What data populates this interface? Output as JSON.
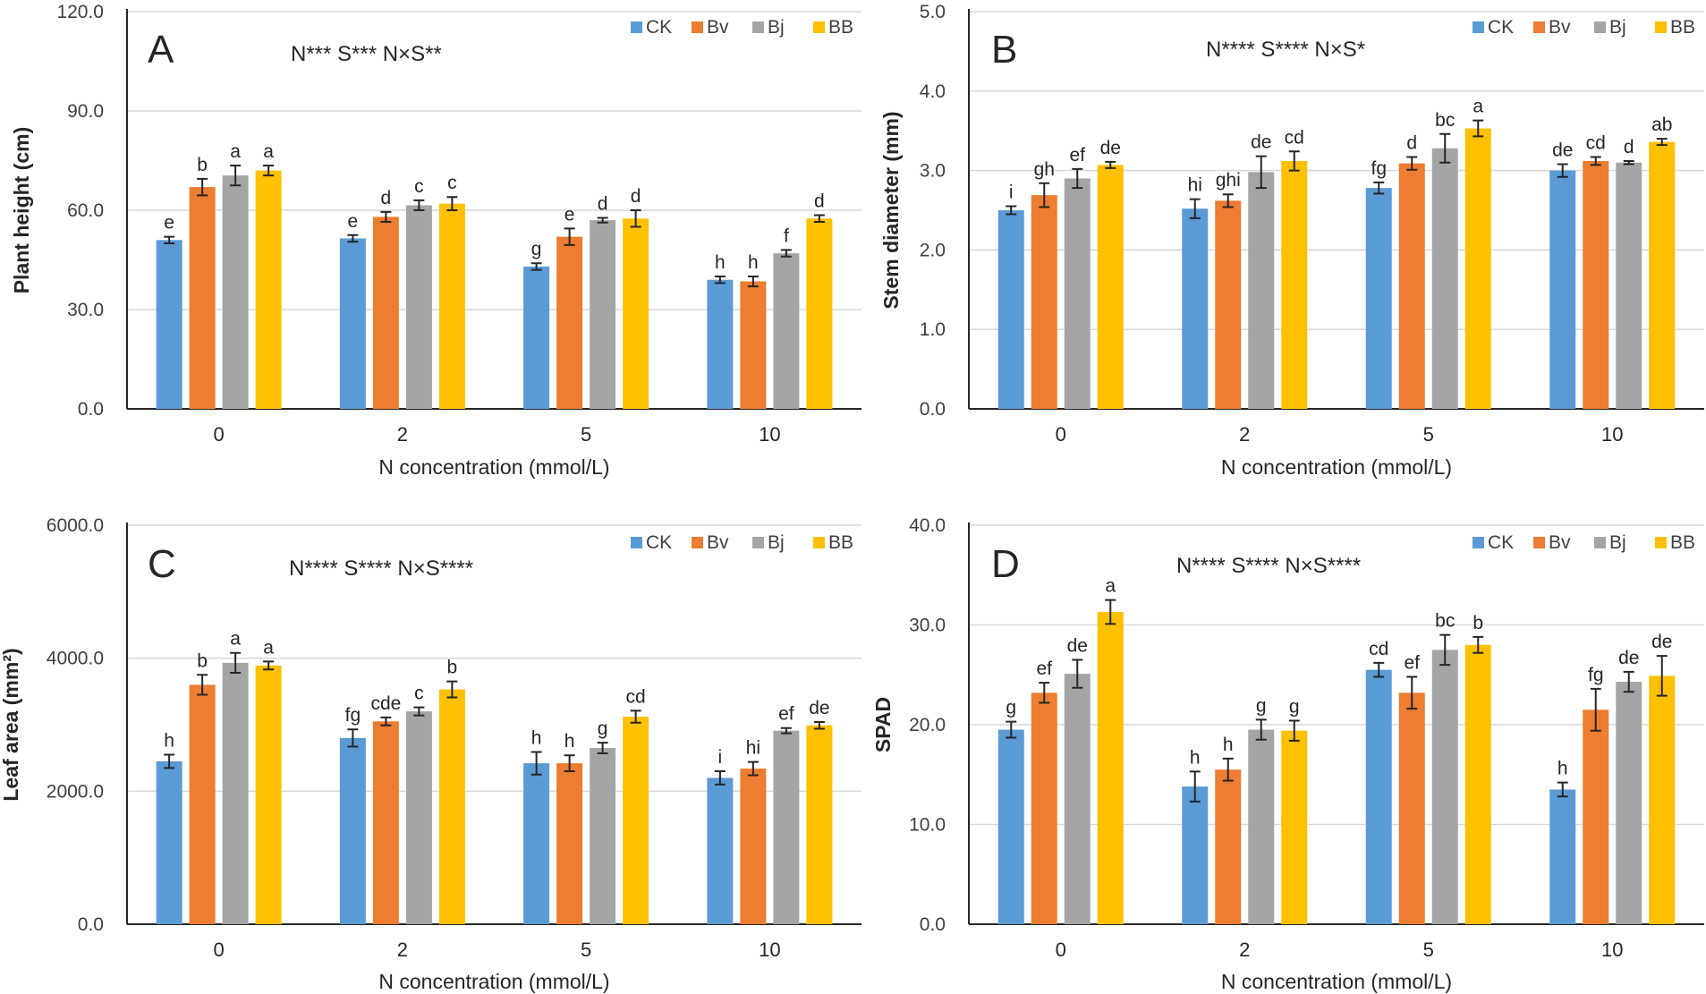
{
  "colors": {
    "CK": "#5b9bd5",
    "Bv": "#ed7d31",
    "Bj": "#a5a5a5",
    "BB": "#ffc000"
  },
  "chart_data": [
    {
      "type": "bar",
      "panel": "A",
      "significance": "N*** S*** N×S**",
      "xlabel": "N concentration (mmol/L)",
      "ylabel": "Plant height (cm)",
      "ylim": [
        0,
        120
      ],
      "yticks": [
        "0.0",
        "30.0",
        "60.0",
        "90.0",
        "120.0"
      ],
      "categories": [
        "0",
        "2",
        "5",
        "10"
      ],
      "legend_position": "top-right",
      "series": [
        {
          "name": "CK",
          "values": [
            51,
            51.5,
            43,
            39
          ],
          "errors": [
            1,
            1,
            1,
            1
          ],
          "letters": [
            "e",
            "e",
            "g",
            "h"
          ]
        },
        {
          "name": "Bv",
          "values": [
            67,
            58,
            52,
            38.5
          ],
          "errors": [
            2.5,
            1.5,
            2.5,
            1.5
          ],
          "letters": [
            "b",
            "d",
            "e",
            "h"
          ]
        },
        {
          "name": "Bj",
          "values": [
            70.5,
            61.5,
            57,
            47
          ],
          "errors": [
            3,
            1.5,
            0.7,
            1
          ],
          "letters": [
            "a",
            "c",
            "d",
            "f"
          ]
        },
        {
          "name": "BB",
          "values": [
            72,
            62,
            57.5,
            57.5
          ],
          "errors": [
            1.5,
            2,
            2.5,
            1
          ],
          "letters": [
            "a",
            "c",
            "d",
            "d"
          ]
        }
      ]
    },
    {
      "type": "bar",
      "panel": "B",
      "significance": "N**** S**** N×S*",
      "xlabel": "N concentration (mmol/L)",
      "ylabel": "Stem diameter (mm)",
      "ylim": [
        0,
        5
      ],
      "yticks": [
        "0.0",
        "1.0",
        "2.0",
        "3.0",
        "4.0",
        "5.0"
      ],
      "categories": [
        "0",
        "2",
        "5",
        "10"
      ],
      "legend_position": "top-right",
      "series": [
        {
          "name": "CK",
          "values": [
            2.5,
            2.52,
            2.78,
            3.0
          ],
          "errors": [
            0.05,
            0.12,
            0.07,
            0.08
          ],
          "letters": [
            "i",
            "hi",
            "fg",
            "de"
          ]
        },
        {
          "name": "Bv",
          "values": [
            2.69,
            2.62,
            3.09,
            3.12
          ],
          "errors": [
            0.15,
            0.08,
            0.08,
            0.05
          ],
          "letters": [
            "gh",
            "ghi",
            "d",
            "cd"
          ]
        },
        {
          "name": "Bj",
          "values": [
            2.9,
            2.98,
            3.28,
            3.1
          ],
          "errors": [
            0.12,
            0.2,
            0.18,
            0.02
          ],
          "letters": [
            "ef",
            "de",
            "bc",
            "d"
          ]
        },
        {
          "name": "BB",
          "values": [
            3.07,
            3.12,
            3.53,
            3.36
          ],
          "errors": [
            0.04,
            0.12,
            0.1,
            0.04
          ],
          "letters": [
            "de",
            "cd",
            "a",
            "ab"
          ]
        }
      ]
    },
    {
      "type": "bar",
      "panel": "C",
      "significance": "N**** S**** N×S****",
      "xlabel": "N concentration (mmol/L)",
      "ylabel": "Leaf area (mm²)",
      "ylim": [
        0,
        6000
      ],
      "yticks": [
        "0.0",
        "2000.0",
        "4000.0",
        "6000.0"
      ],
      "categories": [
        "0",
        "2",
        "5",
        "10"
      ],
      "legend_position": "top-right",
      "series": [
        {
          "name": "CK",
          "values": [
            2450,
            2800,
            2420,
            2200
          ],
          "errors": [
            100,
            130,
            170,
            100
          ],
          "letters": [
            "h",
            "fg",
            "h",
            "i"
          ]
        },
        {
          "name": "Bv",
          "values": [
            3600,
            3050,
            2420,
            2340
          ],
          "errors": [
            150,
            60,
            120,
            100
          ],
          "letters": [
            "b",
            "cde",
            "h",
            "hi"
          ]
        },
        {
          "name": "Bj",
          "values": [
            3930,
            3200,
            2650,
            2910
          ],
          "errors": [
            150,
            60,
            80,
            40
          ],
          "letters": [
            "a",
            "c",
            "g",
            "ef"
          ]
        },
        {
          "name": "BB",
          "values": [
            3890,
            3530,
            3120,
            2990
          ],
          "errors": [
            60,
            120,
            90,
            50
          ],
          "letters": [
            "a",
            "b",
            "cd",
            "de"
          ]
        }
      ]
    },
    {
      "type": "bar",
      "panel": "D",
      "significance": "N**** S**** N×S****",
      "xlabel": "N concentration (mmol/L)",
      "ylabel": "SPAD",
      "ylim": [
        0,
        40
      ],
      "yticks": [
        "0.0",
        "10.0",
        "20.0",
        "30.0",
        "40.0"
      ],
      "categories": [
        "0",
        "2",
        "5",
        "10"
      ],
      "legend_position": "top-right",
      "series": [
        {
          "name": "CK",
          "values": [
            19.5,
            13.8,
            25.5,
            13.5
          ],
          "errors": [
            0.8,
            1.5,
            0.7,
            0.7
          ],
          "letters": [
            "g",
            "h",
            "cd",
            "h"
          ]
        },
        {
          "name": "Bv",
          "values": [
            23.2,
            15.5,
            23.2,
            21.5
          ],
          "errors": [
            1.0,
            1.1,
            1.6,
            2.1
          ],
          "letters": [
            "ef",
            "h",
            "ef",
            "fg"
          ]
        },
        {
          "name": "Bj",
          "values": [
            25.1,
            19.5,
            27.5,
            24.3
          ],
          "errors": [
            1.4,
            1.0,
            1.5,
            1.0
          ],
          "letters": [
            "de",
            "g",
            "bc",
            "de"
          ]
        },
        {
          "name": "BB",
          "values": [
            31.3,
            19.4,
            28.0,
            24.9
          ],
          "errors": [
            1.2,
            1.0,
            0.8,
            2.0
          ],
          "letters": [
            "a",
            "g",
            "b",
            "de"
          ]
        }
      ]
    }
  ]
}
